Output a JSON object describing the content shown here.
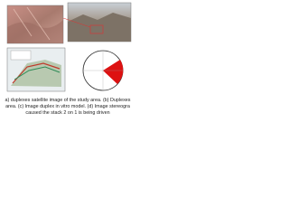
{
  "caption": {
    "lines": [
      "a) duplexes satellite image of the study area. (b) Duplexes",
      "area. (c) Image duplex in vitro model. (d) Image stereogra",
      "caused the stack 2 on 1 is being driven"
    ]
  }
}
